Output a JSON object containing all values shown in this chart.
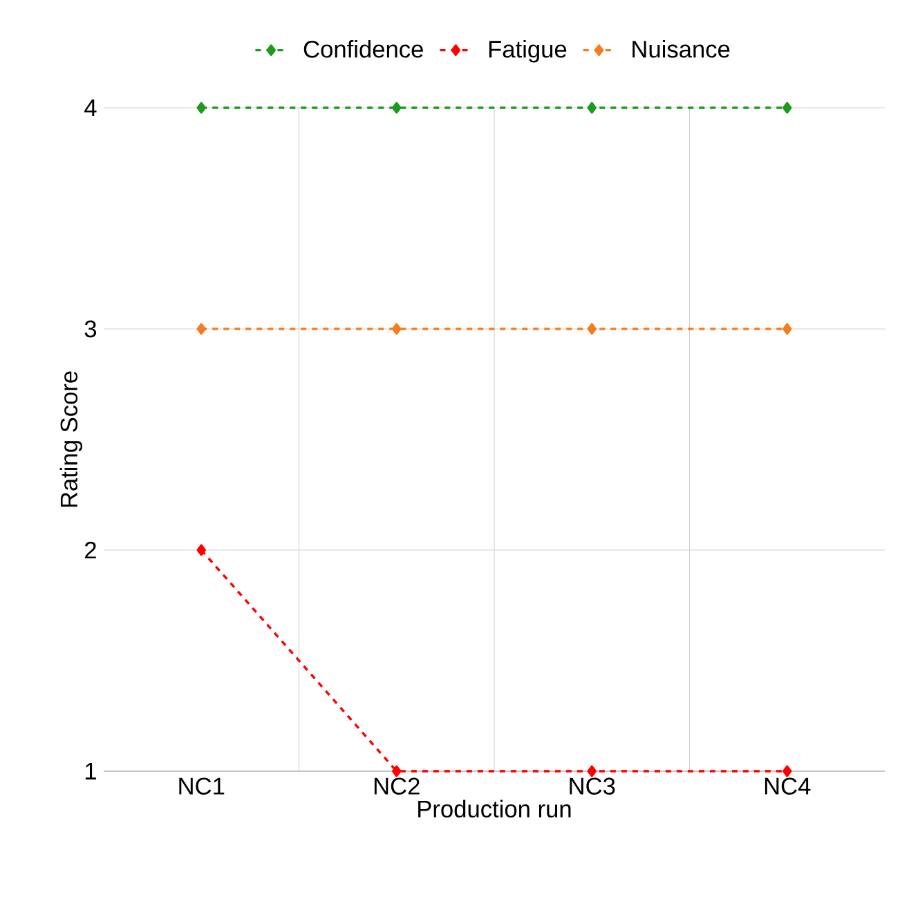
{
  "chart_data": {
    "type": "line",
    "xlabel": "Production run",
    "ylabel": "Rating Score",
    "categories": [
      "NC1",
      "NC2",
      "NC3",
      "NC4"
    ],
    "series": [
      {
        "name": "Confidence",
        "color": "#1e9a1e",
        "values": [
          4,
          4,
          4,
          4
        ]
      },
      {
        "name": "Fatigue",
        "color": "#ff0000",
        "values": [
          2,
          1,
          1,
          1
        ]
      },
      {
        "name": "Nuisance",
        "color": "#f47d20",
        "values": [
          3,
          3,
          3,
          3
        ]
      }
    ],
    "ylim": [
      1,
      4
    ],
    "yticks": [
      1,
      2,
      3,
      4
    ],
    "grid": true,
    "legend": "top",
    "marker": "diamond",
    "line_style": "dashed"
  }
}
